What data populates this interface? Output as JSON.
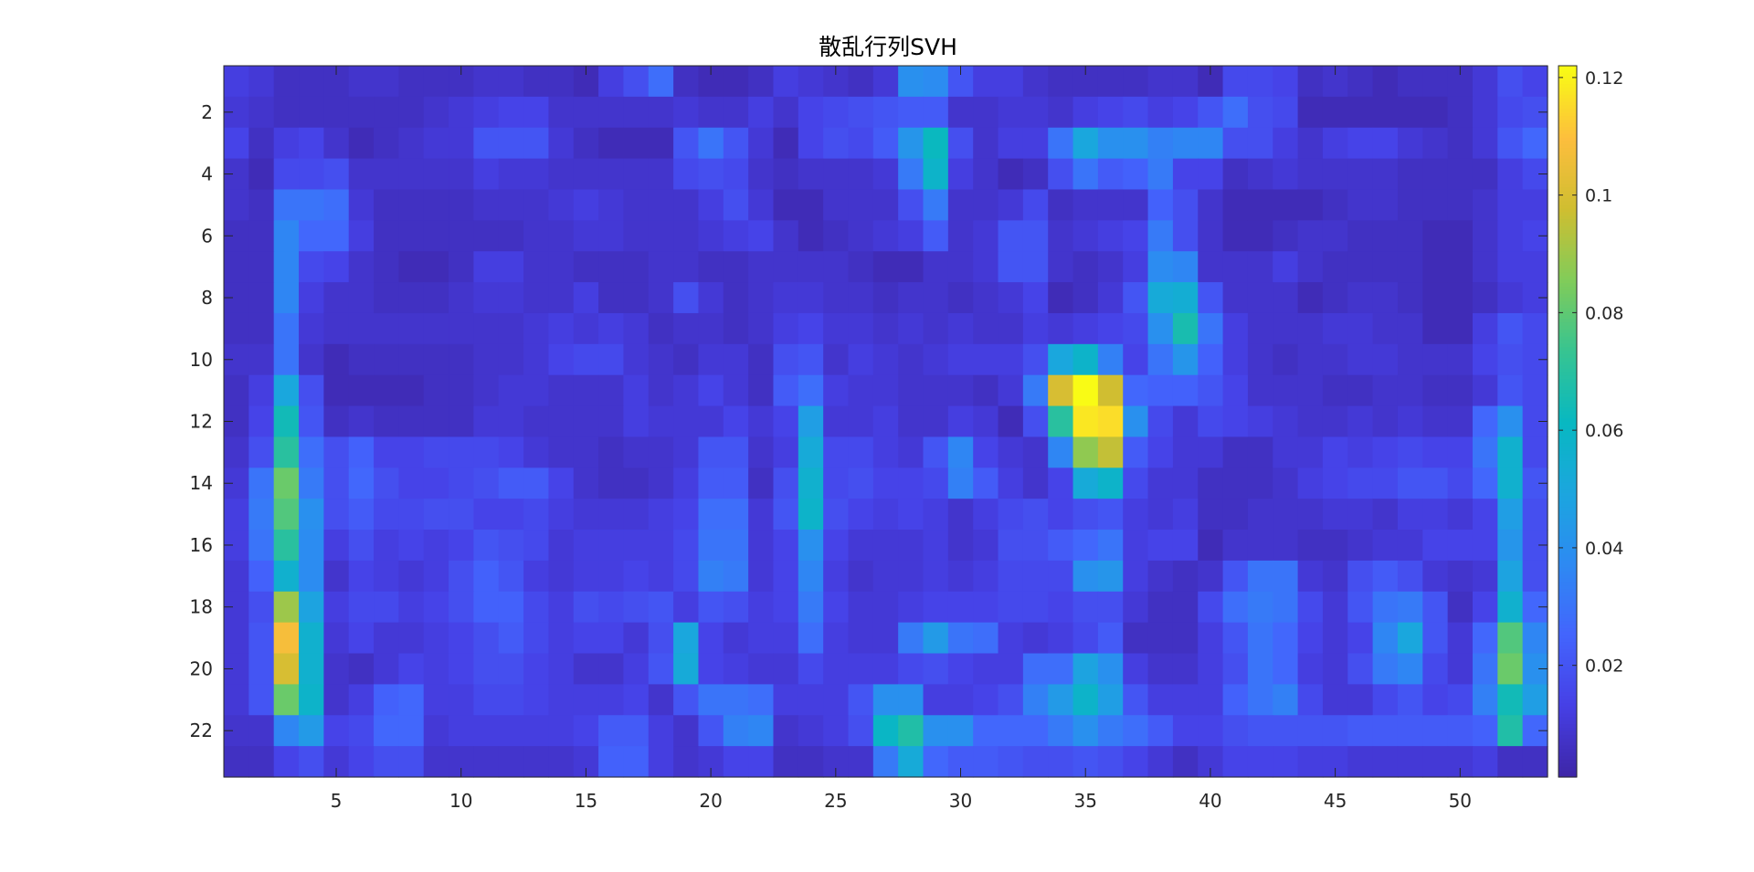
{
  "chart_data": {
    "type": "heatmap",
    "title": "散乱行列SVH",
    "xlabel": "",
    "ylabel": "",
    "x_range": [
      1,
      53
    ],
    "y_range": [
      1,
      23
    ],
    "y_reversed": true,
    "x_ticks": [
      5,
      10,
      15,
      20,
      25,
      30,
      35,
      40,
      45,
      50
    ],
    "y_ticks": [
      2,
      4,
      6,
      8,
      10,
      12,
      14,
      16,
      18,
      20,
      22
    ],
    "colormap": "parula",
    "clim": [
      0.001,
      0.122
    ],
    "colorbar_ticks": [
      {
        "value": 0.02,
        "label": "0.02"
      },
      {
        "value": 0.04,
        "label": "0.04"
      },
      {
        "value": 0.06,
        "label": "0.06"
      },
      {
        "value": 0.08,
        "label": "0.08"
      },
      {
        "value": 0.1,
        "label": "0.1"
      },
      {
        "value": 0.12,
        "label": "0.12"
      }
    ],
    "values": [
      [
        0.012,
        0.01,
        0.006,
        0.006,
        0.006,
        0.008,
        0.008,
        0.006,
        0.006,
        0.006,
        0.008,
        0.008,
        0.006,
        0.006,
        0.004,
        0.012,
        0.018,
        0.028,
        0.006,
        0.004,
        0.004,
        0.006,
        0.012,
        0.01,
        0.008,
        0.006,
        0.01,
        0.04,
        0.038,
        0.02,
        0.012,
        0.012,
        0.008,
        0.006,
        0.006,
        0.006,
        0.006,
        0.008,
        0.008,
        0.004,
        0.016,
        0.016,
        0.014,
        0.006,
        0.008,
        0.006,
        0.004,
        0.006,
        0.006,
        0.006,
        0.01,
        0.018,
        0.014
      ],
      [
        0.01,
        0.008,
        0.006,
        0.006,
        0.006,
        0.006,
        0.006,
        0.006,
        0.008,
        0.01,
        0.012,
        0.014,
        0.014,
        0.008,
        0.008,
        0.008,
        0.008,
        0.008,
        0.01,
        0.008,
        0.008,
        0.012,
        0.008,
        0.014,
        0.016,
        0.018,
        0.02,
        0.022,
        0.022,
        0.008,
        0.008,
        0.01,
        0.01,
        0.008,
        0.012,
        0.014,
        0.016,
        0.012,
        0.014,
        0.02,
        0.028,
        0.018,
        0.016,
        0.004,
        0.004,
        0.004,
        0.004,
        0.004,
        0.004,
        0.006,
        0.01,
        0.016,
        0.018
      ],
      [
        0.014,
        0.006,
        0.012,
        0.014,
        0.008,
        0.004,
        0.006,
        0.008,
        0.01,
        0.01,
        0.02,
        0.02,
        0.02,
        0.01,
        0.006,
        0.004,
        0.004,
        0.004,
        0.02,
        0.03,
        0.02,
        0.01,
        0.004,
        0.014,
        0.018,
        0.016,
        0.022,
        0.042,
        0.062,
        0.018,
        0.008,
        0.012,
        0.012,
        0.03,
        0.05,
        0.04,
        0.04,
        0.034,
        0.036,
        0.036,
        0.018,
        0.018,
        0.012,
        0.008,
        0.012,
        0.014,
        0.014,
        0.01,
        0.008,
        0.006,
        0.01,
        0.02,
        0.026
      ],
      [
        0.008,
        0.004,
        0.016,
        0.016,
        0.018,
        0.008,
        0.008,
        0.008,
        0.008,
        0.008,
        0.012,
        0.01,
        0.01,
        0.008,
        0.008,
        0.008,
        0.008,
        0.008,
        0.016,
        0.018,
        0.016,
        0.008,
        0.006,
        0.008,
        0.008,
        0.008,
        0.01,
        0.032,
        0.058,
        0.012,
        0.008,
        0.004,
        0.006,
        0.018,
        0.03,
        0.022,
        0.024,
        0.032,
        0.014,
        0.014,
        0.006,
        0.008,
        0.01,
        0.008,
        0.008,
        0.008,
        0.008,
        0.006,
        0.006,
        0.006,
        0.006,
        0.012,
        0.016
      ],
      [
        0.008,
        0.006,
        0.03,
        0.03,
        0.028,
        0.01,
        0.006,
        0.006,
        0.006,
        0.006,
        0.008,
        0.008,
        0.008,
        0.01,
        0.012,
        0.01,
        0.008,
        0.008,
        0.008,
        0.012,
        0.018,
        0.01,
        0.004,
        0.004,
        0.008,
        0.008,
        0.008,
        0.018,
        0.032,
        0.008,
        0.008,
        0.01,
        0.016,
        0.006,
        0.008,
        0.008,
        0.008,
        0.024,
        0.018,
        0.008,
        0.004,
        0.004,
        0.004,
        0.004,
        0.006,
        0.008,
        0.008,
        0.006,
        0.006,
        0.006,
        0.008,
        0.012,
        0.012
      ],
      [
        0.006,
        0.006,
        0.036,
        0.026,
        0.026,
        0.012,
        0.006,
        0.006,
        0.006,
        0.006,
        0.006,
        0.006,
        0.008,
        0.008,
        0.01,
        0.01,
        0.008,
        0.008,
        0.008,
        0.01,
        0.012,
        0.014,
        0.008,
        0.004,
        0.006,
        0.008,
        0.01,
        0.012,
        0.022,
        0.008,
        0.01,
        0.02,
        0.02,
        0.008,
        0.01,
        0.012,
        0.014,
        0.032,
        0.018,
        0.008,
        0.004,
        0.004,
        0.006,
        0.008,
        0.008,
        0.006,
        0.006,
        0.006,
        0.004,
        0.004,
        0.008,
        0.012,
        0.014
      ],
      [
        0.006,
        0.006,
        0.036,
        0.016,
        0.014,
        0.008,
        0.006,
        0.004,
        0.004,
        0.006,
        0.012,
        0.012,
        0.008,
        0.008,
        0.006,
        0.006,
        0.006,
        0.008,
        0.008,
        0.006,
        0.006,
        0.008,
        0.008,
        0.008,
        0.008,
        0.006,
        0.004,
        0.004,
        0.008,
        0.008,
        0.01,
        0.02,
        0.02,
        0.008,
        0.006,
        0.008,
        0.012,
        0.038,
        0.036,
        0.008,
        0.008,
        0.008,
        0.012,
        0.008,
        0.006,
        0.006,
        0.006,
        0.006,
        0.004,
        0.004,
        0.008,
        0.012,
        0.012
      ],
      [
        0.006,
        0.006,
        0.036,
        0.012,
        0.008,
        0.008,
        0.006,
        0.006,
        0.006,
        0.008,
        0.01,
        0.01,
        0.008,
        0.008,
        0.012,
        0.006,
        0.006,
        0.008,
        0.018,
        0.01,
        0.006,
        0.008,
        0.01,
        0.01,
        0.008,
        0.008,
        0.006,
        0.008,
        0.008,
        0.006,
        0.008,
        0.01,
        0.014,
        0.004,
        0.006,
        0.01,
        0.02,
        0.052,
        0.054,
        0.02,
        0.008,
        0.008,
        0.008,
        0.004,
        0.006,
        0.008,
        0.008,
        0.006,
        0.004,
        0.004,
        0.006,
        0.01,
        0.012
      ],
      [
        0.006,
        0.006,
        0.03,
        0.01,
        0.008,
        0.008,
        0.008,
        0.008,
        0.008,
        0.008,
        0.008,
        0.008,
        0.01,
        0.012,
        0.01,
        0.012,
        0.01,
        0.006,
        0.008,
        0.008,
        0.006,
        0.008,
        0.012,
        0.014,
        0.01,
        0.01,
        0.008,
        0.01,
        0.008,
        0.01,
        0.008,
        0.008,
        0.012,
        0.01,
        0.012,
        0.014,
        0.016,
        0.04,
        0.066,
        0.03,
        0.012,
        0.008,
        0.008,
        0.008,
        0.01,
        0.01,
        0.008,
        0.008,
        0.004,
        0.004,
        0.012,
        0.02,
        0.016
      ],
      [
        0.008,
        0.008,
        0.03,
        0.008,
        0.004,
        0.006,
        0.006,
        0.006,
        0.006,
        0.006,
        0.008,
        0.008,
        0.01,
        0.014,
        0.016,
        0.016,
        0.01,
        0.008,
        0.006,
        0.01,
        0.01,
        0.006,
        0.018,
        0.02,
        0.008,
        0.012,
        0.01,
        0.008,
        0.01,
        0.012,
        0.012,
        0.012,
        0.018,
        0.05,
        0.058,
        0.034,
        0.014,
        0.03,
        0.042,
        0.024,
        0.012,
        0.008,
        0.006,
        0.008,
        0.008,
        0.01,
        0.01,
        0.008,
        0.008,
        0.008,
        0.014,
        0.018,
        0.016
      ],
      [
        0.006,
        0.012,
        0.05,
        0.018,
        0.004,
        0.004,
        0.004,
        0.004,
        0.006,
        0.006,
        0.008,
        0.01,
        0.01,
        0.008,
        0.008,
        0.008,
        0.012,
        0.008,
        0.01,
        0.014,
        0.01,
        0.006,
        0.022,
        0.028,
        0.012,
        0.01,
        0.01,
        0.008,
        0.008,
        0.008,
        0.006,
        0.01,
        0.032,
        0.1,
        0.122,
        0.098,
        0.026,
        0.024,
        0.024,
        0.02,
        0.014,
        0.008,
        0.008,
        0.008,
        0.006,
        0.006,
        0.008,
        0.008,
        0.006,
        0.006,
        0.01,
        0.02,
        0.016
      ],
      [
        0.006,
        0.014,
        0.064,
        0.02,
        0.006,
        0.008,
        0.006,
        0.006,
        0.006,
        0.006,
        0.01,
        0.01,
        0.008,
        0.008,
        0.008,
        0.008,
        0.012,
        0.01,
        0.01,
        0.01,
        0.014,
        0.01,
        0.014,
        0.046,
        0.01,
        0.01,
        0.012,
        0.008,
        0.008,
        0.012,
        0.01,
        0.004,
        0.018,
        0.07,
        0.118,
        0.116,
        0.04,
        0.016,
        0.01,
        0.016,
        0.014,
        0.012,
        0.01,
        0.008,
        0.008,
        0.01,
        0.008,
        0.01,
        0.008,
        0.008,
        0.026,
        0.04,
        0.016
      ],
      [
        0.008,
        0.018,
        0.07,
        0.028,
        0.018,
        0.024,
        0.014,
        0.014,
        0.016,
        0.016,
        0.016,
        0.014,
        0.01,
        0.008,
        0.008,
        0.006,
        0.008,
        0.008,
        0.01,
        0.02,
        0.02,
        0.008,
        0.012,
        0.052,
        0.016,
        0.016,
        0.012,
        0.01,
        0.02,
        0.036,
        0.014,
        0.01,
        0.008,
        0.036,
        0.088,
        0.096,
        0.022,
        0.014,
        0.01,
        0.01,
        0.006,
        0.006,
        0.01,
        0.01,
        0.014,
        0.012,
        0.014,
        0.016,
        0.014,
        0.014,
        0.03,
        0.056,
        0.016
      ],
      [
        0.01,
        0.03,
        0.082,
        0.032,
        0.018,
        0.026,
        0.018,
        0.014,
        0.014,
        0.016,
        0.018,
        0.022,
        0.022,
        0.014,
        0.008,
        0.006,
        0.006,
        0.008,
        0.012,
        0.022,
        0.022,
        0.006,
        0.018,
        0.056,
        0.016,
        0.018,
        0.014,
        0.014,
        0.016,
        0.034,
        0.022,
        0.012,
        0.008,
        0.014,
        0.052,
        0.058,
        0.016,
        0.01,
        0.01,
        0.006,
        0.006,
        0.006,
        0.008,
        0.012,
        0.014,
        0.016,
        0.016,
        0.02,
        0.02,
        0.016,
        0.026,
        0.056,
        0.02
      ],
      [
        0.012,
        0.032,
        0.078,
        0.04,
        0.018,
        0.022,
        0.016,
        0.016,
        0.018,
        0.018,
        0.014,
        0.014,
        0.016,
        0.012,
        0.01,
        0.01,
        0.01,
        0.012,
        0.014,
        0.028,
        0.028,
        0.01,
        0.02,
        0.058,
        0.018,
        0.014,
        0.012,
        0.014,
        0.012,
        0.008,
        0.012,
        0.016,
        0.018,
        0.014,
        0.018,
        0.02,
        0.012,
        0.01,
        0.012,
        0.006,
        0.006,
        0.008,
        0.008,
        0.008,
        0.01,
        0.01,
        0.008,
        0.012,
        0.012,
        0.01,
        0.014,
        0.046,
        0.018
      ],
      [
        0.012,
        0.03,
        0.07,
        0.038,
        0.012,
        0.018,
        0.012,
        0.014,
        0.012,
        0.014,
        0.02,
        0.018,
        0.016,
        0.01,
        0.012,
        0.012,
        0.012,
        0.012,
        0.016,
        0.03,
        0.03,
        0.01,
        0.014,
        0.04,
        0.014,
        0.01,
        0.01,
        0.01,
        0.012,
        0.008,
        0.01,
        0.018,
        0.018,
        0.022,
        0.026,
        0.03,
        0.012,
        0.014,
        0.014,
        0.004,
        0.008,
        0.008,
        0.008,
        0.006,
        0.006,
        0.008,
        0.01,
        0.01,
        0.014,
        0.014,
        0.014,
        0.042,
        0.018
      ],
      [
        0.01,
        0.024,
        0.056,
        0.038,
        0.008,
        0.014,
        0.012,
        0.01,
        0.012,
        0.018,
        0.024,
        0.02,
        0.012,
        0.01,
        0.012,
        0.012,
        0.014,
        0.012,
        0.016,
        0.034,
        0.032,
        0.01,
        0.014,
        0.036,
        0.012,
        0.008,
        0.01,
        0.01,
        0.012,
        0.01,
        0.012,
        0.016,
        0.016,
        0.016,
        0.04,
        0.042,
        0.012,
        0.008,
        0.006,
        0.008,
        0.02,
        0.03,
        0.03,
        0.01,
        0.008,
        0.018,
        0.022,
        0.018,
        0.01,
        0.008,
        0.01,
        0.048,
        0.018
      ],
      [
        0.01,
        0.018,
        0.09,
        0.048,
        0.012,
        0.016,
        0.016,
        0.012,
        0.014,
        0.018,
        0.024,
        0.024,
        0.016,
        0.012,
        0.018,
        0.016,
        0.018,
        0.02,
        0.012,
        0.02,
        0.018,
        0.012,
        0.014,
        0.032,
        0.014,
        0.01,
        0.01,
        0.012,
        0.014,
        0.014,
        0.014,
        0.016,
        0.016,
        0.014,
        0.018,
        0.018,
        0.01,
        0.006,
        0.006,
        0.016,
        0.028,
        0.032,
        0.03,
        0.016,
        0.01,
        0.02,
        0.03,
        0.032,
        0.02,
        0.006,
        0.014,
        0.056,
        0.026
      ],
      [
        0.01,
        0.02,
        0.108,
        0.056,
        0.01,
        0.014,
        0.01,
        0.01,
        0.012,
        0.014,
        0.018,
        0.022,
        0.016,
        0.012,
        0.014,
        0.014,
        0.01,
        0.018,
        0.05,
        0.014,
        0.01,
        0.012,
        0.012,
        0.028,
        0.012,
        0.01,
        0.01,
        0.032,
        0.044,
        0.03,
        0.028,
        0.012,
        0.01,
        0.012,
        0.016,
        0.022,
        0.006,
        0.006,
        0.006,
        0.012,
        0.02,
        0.03,
        0.026,
        0.014,
        0.01,
        0.014,
        0.036,
        0.05,
        0.02,
        0.01,
        0.026,
        0.078,
        0.036
      ],
      [
        0.01,
        0.02,
        0.1,
        0.056,
        0.008,
        0.006,
        0.01,
        0.014,
        0.012,
        0.014,
        0.018,
        0.018,
        0.014,
        0.012,
        0.008,
        0.008,
        0.012,
        0.02,
        0.052,
        0.014,
        0.012,
        0.01,
        0.01,
        0.016,
        0.012,
        0.012,
        0.012,
        0.016,
        0.018,
        0.014,
        0.012,
        0.012,
        0.028,
        0.028,
        0.048,
        0.04,
        0.012,
        0.008,
        0.008,
        0.012,
        0.018,
        0.03,
        0.026,
        0.012,
        0.01,
        0.018,
        0.032,
        0.036,
        0.016,
        0.01,
        0.03,
        0.082,
        0.04
      ],
      [
        0.01,
        0.02,
        0.082,
        0.058,
        0.008,
        0.012,
        0.024,
        0.026,
        0.012,
        0.012,
        0.016,
        0.016,
        0.014,
        0.012,
        0.012,
        0.012,
        0.014,
        0.008,
        0.02,
        0.03,
        0.03,
        0.028,
        0.012,
        0.012,
        0.012,
        0.02,
        0.04,
        0.04,
        0.012,
        0.012,
        0.014,
        0.018,
        0.034,
        0.044,
        0.058,
        0.046,
        0.02,
        0.012,
        0.012,
        0.012,
        0.024,
        0.03,
        0.034,
        0.016,
        0.01,
        0.01,
        0.016,
        0.02,
        0.014,
        0.016,
        0.034,
        0.064,
        0.046
      ],
      [
        0.008,
        0.008,
        0.036,
        0.044,
        0.014,
        0.016,
        0.026,
        0.026,
        0.01,
        0.012,
        0.012,
        0.012,
        0.012,
        0.012,
        0.014,
        0.022,
        0.022,
        0.012,
        0.008,
        0.02,
        0.034,
        0.036,
        0.008,
        0.01,
        0.012,
        0.018,
        0.06,
        0.068,
        0.04,
        0.04,
        0.026,
        0.026,
        0.026,
        0.032,
        0.04,
        0.032,
        0.028,
        0.022,
        0.014,
        0.014,
        0.018,
        0.02,
        0.02,
        0.02,
        0.02,
        0.022,
        0.022,
        0.022,
        0.022,
        0.022,
        0.024,
        0.068,
        0.026
      ],
      [
        0.006,
        0.006,
        0.014,
        0.018,
        0.01,
        0.014,
        0.018,
        0.018,
        0.008,
        0.008,
        0.008,
        0.008,
        0.008,
        0.008,
        0.01,
        0.024,
        0.024,
        0.012,
        0.008,
        0.01,
        0.014,
        0.014,
        0.006,
        0.006,
        0.008,
        0.008,
        0.032,
        0.052,
        0.026,
        0.022,
        0.022,
        0.02,
        0.018,
        0.018,
        0.02,
        0.018,
        0.014,
        0.01,
        0.006,
        0.01,
        0.014,
        0.014,
        0.014,
        0.012,
        0.012,
        0.01,
        0.01,
        0.01,
        0.01,
        0.01,
        0.012,
        0.006,
        0.006
      ]
    ]
  }
}
